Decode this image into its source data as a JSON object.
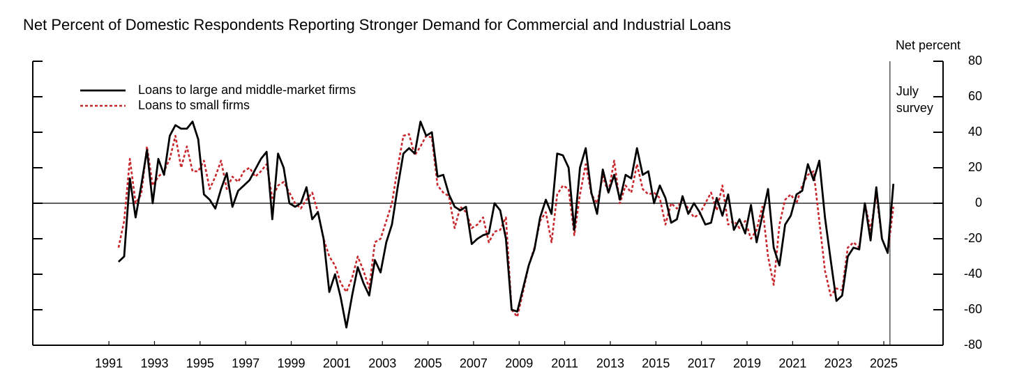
{
  "chart_data": {
    "type": "line",
    "title": "Net Percent of Domestic Respondents Reporting Stronger Demand for Commercial and Industrial Loans",
    "y_axis_label": "Net percent",
    "annotation": {
      "x": 2025.77,
      "lines": [
        "July",
        "survey"
      ]
    },
    "hline": 0,
    "xlim": [
      1988.16,
      2028.1
    ],
    "ylim": [
      -80,
      80
    ],
    "yticks": [
      -80,
      -60,
      -40,
      -20,
      0,
      20,
      40,
      60,
      80
    ],
    "xticks": [
      {
        "value": 1991.5,
        "label": "1991"
      },
      {
        "value": 1993.5,
        "label": "1993"
      },
      {
        "value": 1995.5,
        "label": "1995"
      },
      {
        "value": 1997.5,
        "label": "1997"
      },
      {
        "value": 1999.5,
        "label": "1999"
      },
      {
        "value": 2001.5,
        "label": "2001"
      },
      {
        "value": 2003.5,
        "label": "2003"
      },
      {
        "value": 2005.5,
        "label": "2005"
      },
      {
        "value": 2007.5,
        "label": "2007"
      },
      {
        "value": 2009.5,
        "label": "2009"
      },
      {
        "value": 2011.5,
        "label": "2011"
      },
      {
        "value": 2013.5,
        "label": "2013"
      },
      {
        "value": 2015.5,
        "label": "2015"
      },
      {
        "value": 2017.5,
        "label": "2017"
      },
      {
        "value": 2019.5,
        "label": "2019"
      },
      {
        "value": 2021.5,
        "label": "2021"
      },
      {
        "value": 2023.5,
        "label": "2023"
      },
      {
        "value": 2025.5,
        "label": "2025"
      }
    ],
    "legend": "upper left",
    "x": [
      1991.92,
      1992.17,
      1992.42,
      1992.67,
      1992.92,
      1993.17,
      1993.42,
      1993.67,
      1993.92,
      1994.17,
      1994.42,
      1994.67,
      1994.92,
      1995.17,
      1995.42,
      1995.67,
      1995.92,
      1996.17,
      1996.42,
      1996.67,
      1996.92,
      1997.17,
      1997.42,
      1997.67,
      1997.92,
      1998.17,
      1998.42,
      1998.67,
      1998.92,
      1999.17,
      1999.42,
      1999.67,
      1999.92,
      2000.17,
      2000.42,
      2000.67,
      2000.92,
      2001.17,
      2001.42,
      2001.67,
      2001.92,
      2002.17,
      2002.42,
      2002.67,
      2002.92,
      2003.17,
      2003.42,
      2003.67,
      2003.92,
      2004.17,
      2004.42,
      2004.67,
      2004.92,
      2005.17,
      2005.42,
      2005.67,
      2005.92,
      2006.17,
      2006.42,
      2006.67,
      2006.92,
      2007.17,
      2007.42,
      2007.67,
      2007.92,
      2008.17,
      2008.42,
      2008.67,
      2008.92,
      2009.17,
      2009.42,
      2009.67,
      2009.92,
      2010.17,
      2010.42,
      2010.67,
      2010.92,
      2011.17,
      2011.42,
      2011.67,
      2011.92,
      2012.17,
      2012.42,
      2012.67,
      2012.92,
      2013.17,
      2013.42,
      2013.67,
      2013.92,
      2014.17,
      2014.42,
      2014.67,
      2014.92,
      2015.17,
      2015.42,
      2015.67,
      2015.92,
      2016.17,
      2016.42,
      2016.67,
      2016.92,
      2017.17,
      2017.42,
      2017.67,
      2017.92,
      2018.17,
      2018.42,
      2018.67,
      2018.92,
      2019.17,
      2019.42,
      2019.67,
      2019.92,
      2020.17,
      2020.42,
      2020.67,
      2020.92,
      2021.17,
      2021.42,
      2021.67,
      2021.92,
      2022.17,
      2022.42,
      2022.67,
      2022.92,
      2023.17,
      2023.42,
      2023.67,
      2023.92,
      2024.17,
      2024.42,
      2024.67,
      2024.92,
      2025.17,
      2025.42,
      2025.67,
      2025.92
    ],
    "series": [
      {
        "name": "Loans to large and middle-market firms",
        "color": "#000000",
        "dash": false,
        "values": [
          -33,
          -30,
          14,
          -8,
          10,
          30,
          0,
          25,
          16,
          38,
          44,
          42,
          42,
          46,
          36,
          5,
          2,
          -3,
          8,
          17,
          -2,
          7,
          10,
          13,
          19,
          25,
          29,
          -9,
          28,
          20,
          0,
          -2,
          0,
          9,
          -9,
          -5,
          -20,
          -50,
          -40,
          -53,
          -70,
          -52,
          -36,
          -45,
          -52,
          -32,
          -39,
          -22,
          -12,
          9,
          28,
          31,
          28,
          46,
          38,
          40,
          15,
          16,
          5,
          -2,
          -4,
          -2,
          -23,
          -20,
          -18,
          -17,
          0,
          -4,
          -20,
          -60,
          -61,
          -48,
          -35,
          -26,
          -8,
          2,
          -6,
          28,
          27,
          20,
          -15,
          20,
          31,
          6,
          -6,
          19,
          6,
          16,
          2,
          16,
          14,
          31,
          16,
          18,
          0,
          10,
          3,
          -11,
          -9,
          4,
          -6,
          0,
          -5,
          -12,
          -11,
          3,
          -7,
          5,
          -15,
          -9,
          -17,
          -1,
          -22,
          -7,
          8,
          -25,
          -35,
          -12,
          -7,
          5,
          7,
          22,
          13,
          24,
          -8,
          -32,
          -55,
          -52,
          -30,
          -25,
          -26,
          0,
          -21,
          9,
          -20,
          -28,
          11
        ]
      },
      {
        "name": "Loans to small firms",
        "color": "#c8282d",
        "dash": true,
        "values": [
          -25,
          -10,
          25,
          0,
          5,
          32,
          10,
          15,
          18,
          25,
          38,
          20,
          32,
          18,
          18,
          24,
          8,
          15,
          24,
          8,
          15,
          12,
          18,
          20,
          15,
          18,
          22,
          3,
          10,
          12,
          6,
          0,
          -3,
          2,
          6,
          -5,
          -20,
          -30,
          -35,
          -45,
          -50,
          -42,
          -30,
          -38,
          -48,
          -22,
          -20,
          -10,
          0,
          20,
          38,
          39,
          27,
          32,
          38,
          37,
          10,
          6,
          4,
          -14,
          -2,
          -5,
          -14,
          -12,
          -8,
          -22,
          -16,
          -15,
          -8,
          -60,
          -64,
          -50,
          -35,
          -25,
          -10,
          -5,
          -22,
          5,
          10,
          8,
          -18,
          5,
          22,
          5,
          0,
          15,
          6,
          24,
          0,
          10,
          6,
          22,
          8,
          5,
          6,
          3,
          -12,
          0,
          -3,
          2,
          -3,
          -8,
          -6,
          0,
          6,
          -4,
          10,
          -12,
          -10,
          -14,
          -10,
          -20,
          -15,
          -2,
          -30,
          -46,
          -12,
          2,
          5,
          0,
          10,
          16,
          18,
          -10,
          -38,
          -52,
          -48,
          -49,
          -25,
          -22,
          -25,
          0,
          -15,
          5,
          -20,
          -28,
          -2
        ]
      }
    ]
  }
}
